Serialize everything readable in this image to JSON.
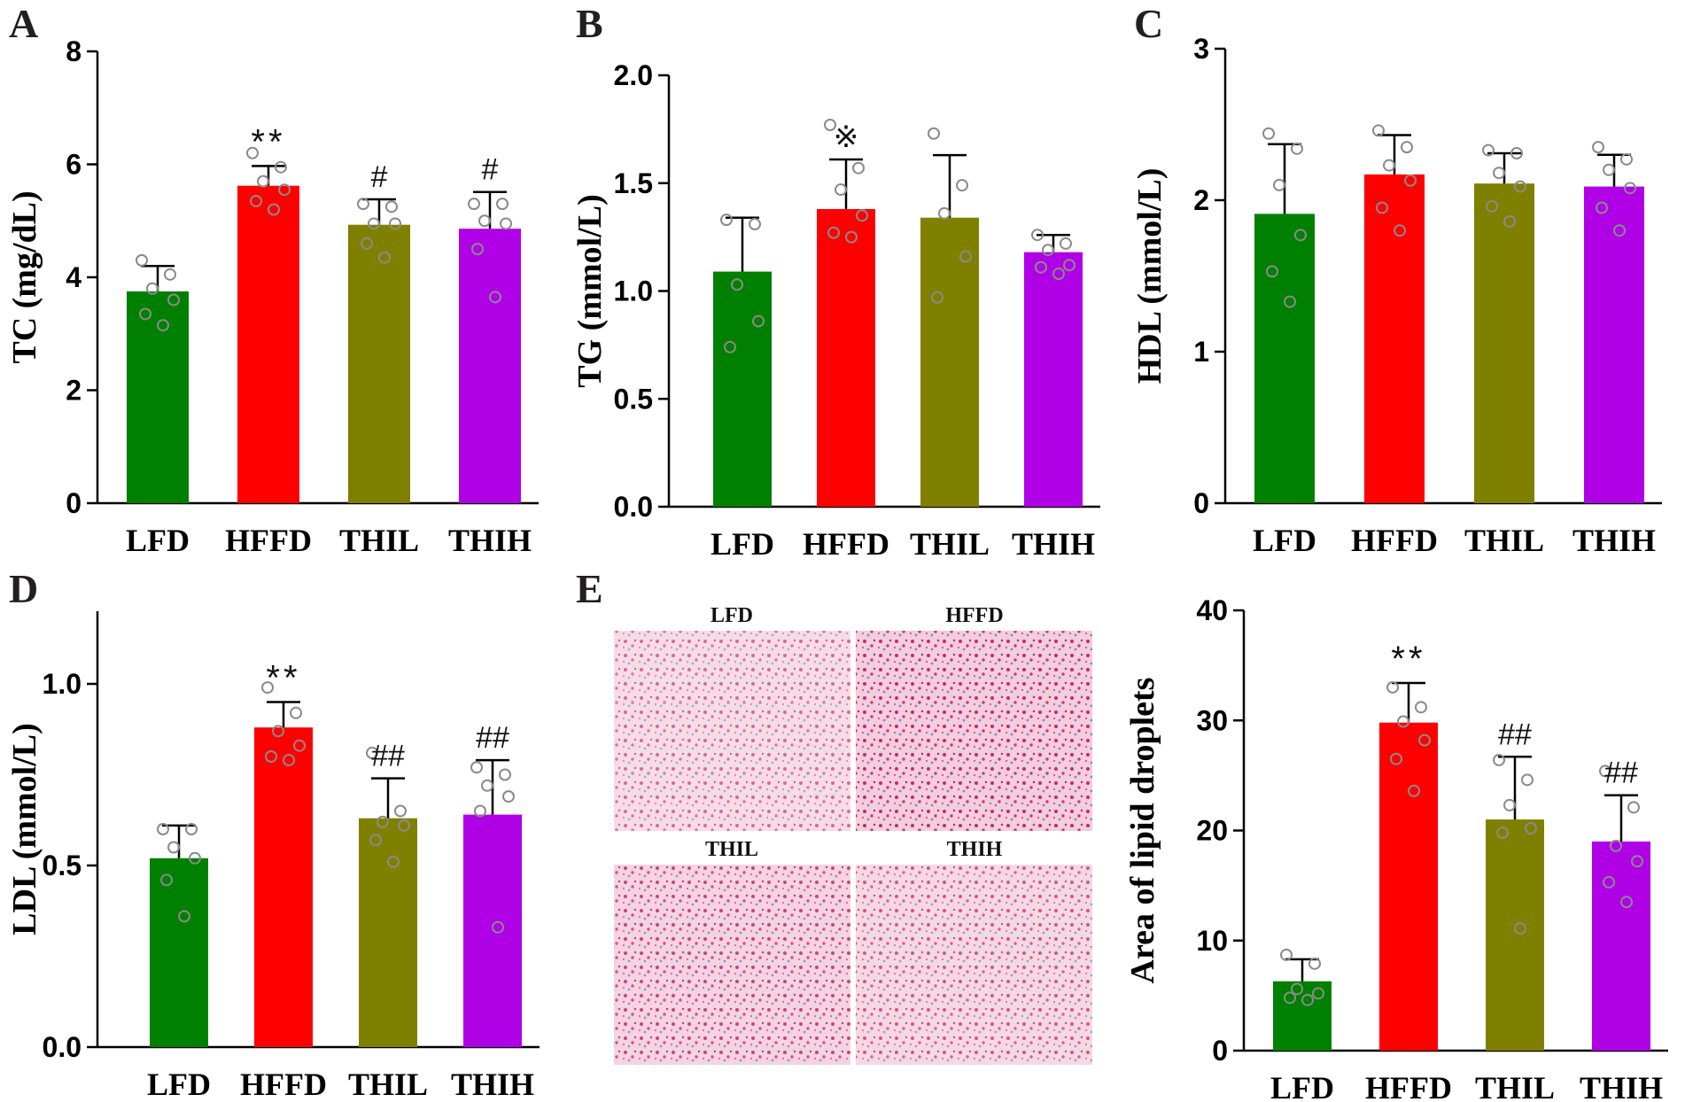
{
  "colors": {
    "LFD": "#008000",
    "HFFD": "#ff0000",
    "THIL": "#808000",
    "THIH": "#b000e6"
  },
  "micrograph_panel": {
    "letter": "E",
    "labels": [
      "LFD",
      "HFFD",
      "THIL",
      "THIH"
    ],
    "stain_intensity": [
      0.35,
      0.85,
      0.65,
      0.5
    ]
  },
  "chart_data": [
    {
      "letter": "A",
      "type": "bar",
      "title": "",
      "xlabel": "",
      "ylabel": "TC (mg/dL)",
      "categories": [
        "LFD",
        "HFFD",
        "THIL",
        "THIH"
      ],
      "values": [
        3.75,
        5.62,
        4.93,
        4.86
      ],
      "errors": [
        0.45,
        0.35,
        0.45,
        0.65
      ],
      "points": [
        [
          4.3,
          4.05,
          3.8,
          3.6,
          3.35,
          3.15
        ],
        [
          6.2,
          5.95,
          5.7,
          5.55,
          5.35,
          5.2
        ],
        [
          5.3,
          5.25,
          4.95,
          4.95,
          4.6,
          4.35
        ],
        [
          5.3,
          5.3,
          5.0,
          4.95,
          4.5,
          3.65
        ]
      ],
      "significance": [
        "",
        "**",
        "#",
        "#"
      ],
      "ylim": [
        0,
        8
      ],
      "yticks": [
        "0",
        "2",
        "4",
        "6",
        "8"
      ]
    },
    {
      "letter": "B",
      "type": "bar",
      "title": "",
      "xlabel": "",
      "ylabel": "TG (mmol/L)",
      "categories": [
        "LFD",
        "HFFD",
        "THIL",
        "THIH"
      ],
      "values": [
        1.09,
        1.38,
        1.34,
        1.18
      ],
      "errors": [
        0.25,
        0.23,
        0.29,
        0.08
      ],
      "points": [
        [
          1.33,
          1.31,
          1.03,
          0.86,
          0.74
        ],
        [
          1.77,
          1.57,
          1.47,
          1.35,
          1.27,
          1.25
        ],
        [
          1.73,
          1.49,
          1.36,
          1.16,
          0.97
        ],
        [
          1.26,
          1.22,
          1.19,
          1.12,
          1.11,
          1.08
        ]
      ],
      "significance": [
        "",
        "※",
        "",
        ""
      ],
      "ylim": [
        0,
        2.0
      ],
      "yticks": [
        "0.0",
        "0.5",
        "1.0",
        "1.5",
        "2.0"
      ]
    },
    {
      "letter": "C",
      "type": "bar",
      "title": "",
      "xlabel": "",
      "ylabel": "HDL (mmol/L)",
      "categories": [
        "LFD",
        "HFFD",
        "THIL",
        "THIH"
      ],
      "values": [
        1.91,
        2.17,
        2.11,
        2.09
      ],
      "errors": [
        0.46,
        0.26,
        0.2,
        0.21
      ],
      "points": [
        [
          2.44,
          2.34,
          2.1,
          1.77,
          1.53,
          1.33
        ],
        [
          2.46,
          2.35,
          2.23,
          2.13,
          1.95,
          1.8
        ],
        [
          2.33,
          2.31,
          2.18,
          2.09,
          1.96,
          1.86
        ],
        [
          2.35,
          2.27,
          2.2,
          2.08,
          1.95,
          1.8
        ]
      ],
      "significance": [
        "",
        "",
        "",
        ""
      ],
      "ylim": [
        0,
        3
      ],
      "yticks": [
        "0",
        "1",
        "2",
        "3"
      ]
    },
    {
      "letter": "D",
      "type": "bar",
      "title": "",
      "xlabel": "",
      "ylabel": "LDL (mmol/L)",
      "categories": [
        "LFD",
        "HFFD",
        "THIL",
        "THIH"
      ],
      "values": [
        0.52,
        0.88,
        0.63,
        0.64
      ],
      "errors": [
        0.09,
        0.07,
        0.11,
        0.15
      ],
      "points": [
        [
          0.6,
          0.6,
          0.55,
          0.52,
          0.46,
          0.36
        ],
        [
          0.99,
          0.92,
          0.87,
          0.83,
          0.8,
          0.79
        ],
        [
          0.81,
          0.65,
          0.62,
          0.61,
          0.57,
          0.51
        ],
        [
          0.77,
          0.75,
          0.72,
          0.69,
          0.65,
          0.33
        ]
      ],
      "significance": [
        "",
        "**",
        "##",
        "##"
      ],
      "ylim": [
        0,
        1.2
      ],
      "yticks": [
        "0.0",
        "0.5",
        "1.0"
      ]
    },
    {
      "letter": "",
      "type": "bar",
      "title": "",
      "xlabel": "",
      "ylabel": "Area of lipid droplets",
      "categories": [
        "LFD",
        "HFFD",
        "THIL",
        "THIH"
      ],
      "values": [
        6.3,
        29.8,
        21.0,
        19.0
      ],
      "errors": [
        2.0,
        3.6,
        5.7,
        4.2
      ],
      "points": [
        [
          8.7,
          7.9,
          5.6,
          5.2,
          4.8,
          4.6
        ],
        [
          33.0,
          31.2,
          29.9,
          28.2,
          26.5,
          23.6
        ],
        [
          26.4,
          24.6,
          22.3,
          20.2,
          19.8,
          11.1
        ],
        [
          25.4,
          22.1,
          18.6,
          17.2,
          15.3,
          13.5
        ]
      ],
      "significance": [
        "",
        "**",
        "##",
        "##"
      ],
      "ylim": [
        0,
        40
      ],
      "yticks": [
        "0",
        "10",
        "20",
        "30",
        "40"
      ]
    }
  ]
}
